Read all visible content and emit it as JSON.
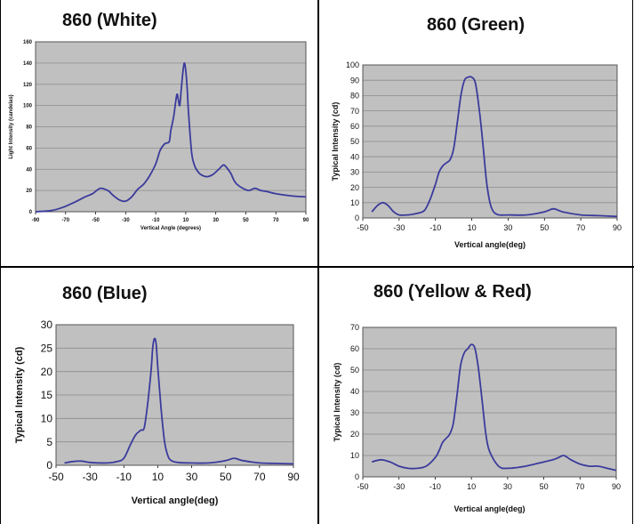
{
  "figure": {
    "colors": {
      "plot_bg": "#c0c0c0",
      "line": "#3b3b9c",
      "grid": "#8c8c8c",
      "frame": "#000000"
    }
  },
  "chart_data": [
    {
      "type": "line",
      "title": "860 (White)",
      "xlabel": "Vertical Angle (degrees)",
      "ylabel": "Light Intensity (candelas)",
      "xlim": [
        -90,
        90
      ],
      "ylim": [
        0,
        160
      ],
      "xticks": [
        -90,
        -70,
        -50,
        -30,
        -10,
        10,
        30,
        50,
        70,
        90
      ],
      "yticks": [
        0,
        20,
        40,
        60,
        80,
        100,
        120,
        140,
        160
      ],
      "grid": true,
      "series": [
        {
          "x": [
            -90,
            -80,
            -72,
            -64,
            -57,
            -52,
            -47,
            -42,
            -38,
            -34,
            -30,
            -26,
            -22,
            -18,
            -14,
            -10,
            -7,
            -4,
            -1,
            0,
            2,
            4,
            5,
            6,
            7,
            8,
            9,
            10,
            11,
            12,
            14,
            16,
            18,
            20,
            24,
            28,
            32,
            35,
            37,
            40,
            42,
            44,
            48,
            52,
            56,
            60,
            64,
            70,
            80,
            90
          ],
          "y": [
            0,
            1,
            4,
            9,
            14,
            17,
            22,
            20,
            15,
            11,
            10,
            14,
            21,
            26,
            34,
            45,
            58,
            64,
            66,
            76,
            90,
            110,
            106,
            100,
            115,
            130,
            140,
            133,
            115,
            90,
            55,
            43,
            38,
            35,
            33,
            35,
            40,
            44,
            42,
            36,
            30,
            26,
            22,
            20,
            22,
            20,
            19,
            17,
            15,
            14
          ]
        }
      ]
    },
    {
      "type": "line",
      "title": "860 (Green)",
      "xlabel": "Vertical angle(deg)",
      "ylabel": "Typical Intensity (cd)",
      "xlim": [
        -50,
        90
      ],
      "ylim": [
        0,
        100
      ],
      "xticks": [
        -50,
        -30,
        -10,
        10,
        30,
        50,
        70,
        90
      ],
      "yticks": [
        0,
        10,
        20,
        30,
        40,
        50,
        60,
        70,
        80,
        90,
        100
      ],
      "grid": true,
      "series": [
        {
          "x": [
            -45,
            -42,
            -39,
            -36,
            -33,
            -30,
            -25,
            -20,
            -16,
            -13,
            -10,
            -8,
            -6,
            -4,
            -2,
            0,
            2,
            4,
            6,
            8,
            10,
            12,
            14,
            16,
            18,
            20,
            22,
            25,
            30,
            40,
            50,
            55,
            60,
            70,
            80,
            90
          ],
          "y": [
            4,
            8,
            10,
            8,
            4,
            2,
            2,
            3,
            5,
            12,
            22,
            30,
            34,
            36,
            38,
            45,
            62,
            80,
            90,
            92,
            92,
            88,
            72,
            50,
            25,
            10,
            4,
            2,
            2,
            2,
            4,
            6,
            4,
            2,
            1.5,
            1
          ]
        }
      ]
    },
    {
      "type": "line",
      "title": "860 (Blue)",
      "xlabel": "Vertical angle(deg)",
      "ylabel": "Typical Intensity (cd)",
      "xlim": [
        -50,
        90
      ],
      "ylim": [
        0,
        30
      ],
      "xticks": [
        -50,
        -30,
        -10,
        10,
        30,
        50,
        70,
        90
      ],
      "yticks": [
        0,
        5,
        10,
        15,
        20,
        25,
        30
      ],
      "grid": true,
      "series": [
        {
          "x": [
            -45,
            -40,
            -35,
            -30,
            -20,
            -14,
            -10,
            -6,
            -3,
            0,
            2,
            4,
            6,
            7,
            8,
            9,
            10,
            12,
            14,
            16,
            18,
            22,
            30,
            40,
            50,
            55,
            60,
            70,
            80,
            90
          ],
          "y": [
            0.5,
            0.8,
            0.9,
            0.6,
            0.5,
            0.8,
            1.5,
            4.5,
            6.5,
            7.5,
            8,
            13,
            20,
            25,
            27,
            26,
            21,
            12,
            5,
            2,
            1,
            0.6,
            0.5,
            0.5,
            1,
            1.5,
            1,
            0.5,
            0.4,
            0.3
          ]
        }
      ]
    },
    {
      "type": "line",
      "title": "860  (Yellow & Red)",
      "xlabel": "Vertical angle(deg)",
      "ylabel": "Typical Intensity (cd)",
      "xlim": [
        -50,
        90
      ],
      "ylim": [
        0,
        70
      ],
      "xticks": [
        -50,
        -30,
        -10,
        10,
        30,
        50,
        70,
        90
      ],
      "yticks": [
        0,
        10,
        20,
        30,
        40,
        50,
        60,
        70
      ],
      "grid": true,
      "series": [
        {
          "x": [
            -45,
            -40,
            -35,
            -30,
            -25,
            -20,
            -15,
            -10,
            -8,
            -6,
            -4,
            -2,
            0,
            2,
            4,
            6,
            8,
            10,
            12,
            14,
            16,
            18,
            20,
            25,
            30,
            40,
            50,
            55,
            58,
            61,
            65,
            70,
            75,
            80,
            85,
            90
          ],
          "y": [
            7,
            8,
            7,
            5,
            4,
            4,
            5,
            9,
            12,
            16,
            18,
            20,
            25,
            38,
            52,
            58,
            60,
            62,
            60,
            50,
            35,
            20,
            12,
            5,
            4,
            5,
            7,
            8,
            9,
            10,
            8,
            6,
            5,
            5,
            4,
            3
          ]
        }
      ]
    }
  ]
}
